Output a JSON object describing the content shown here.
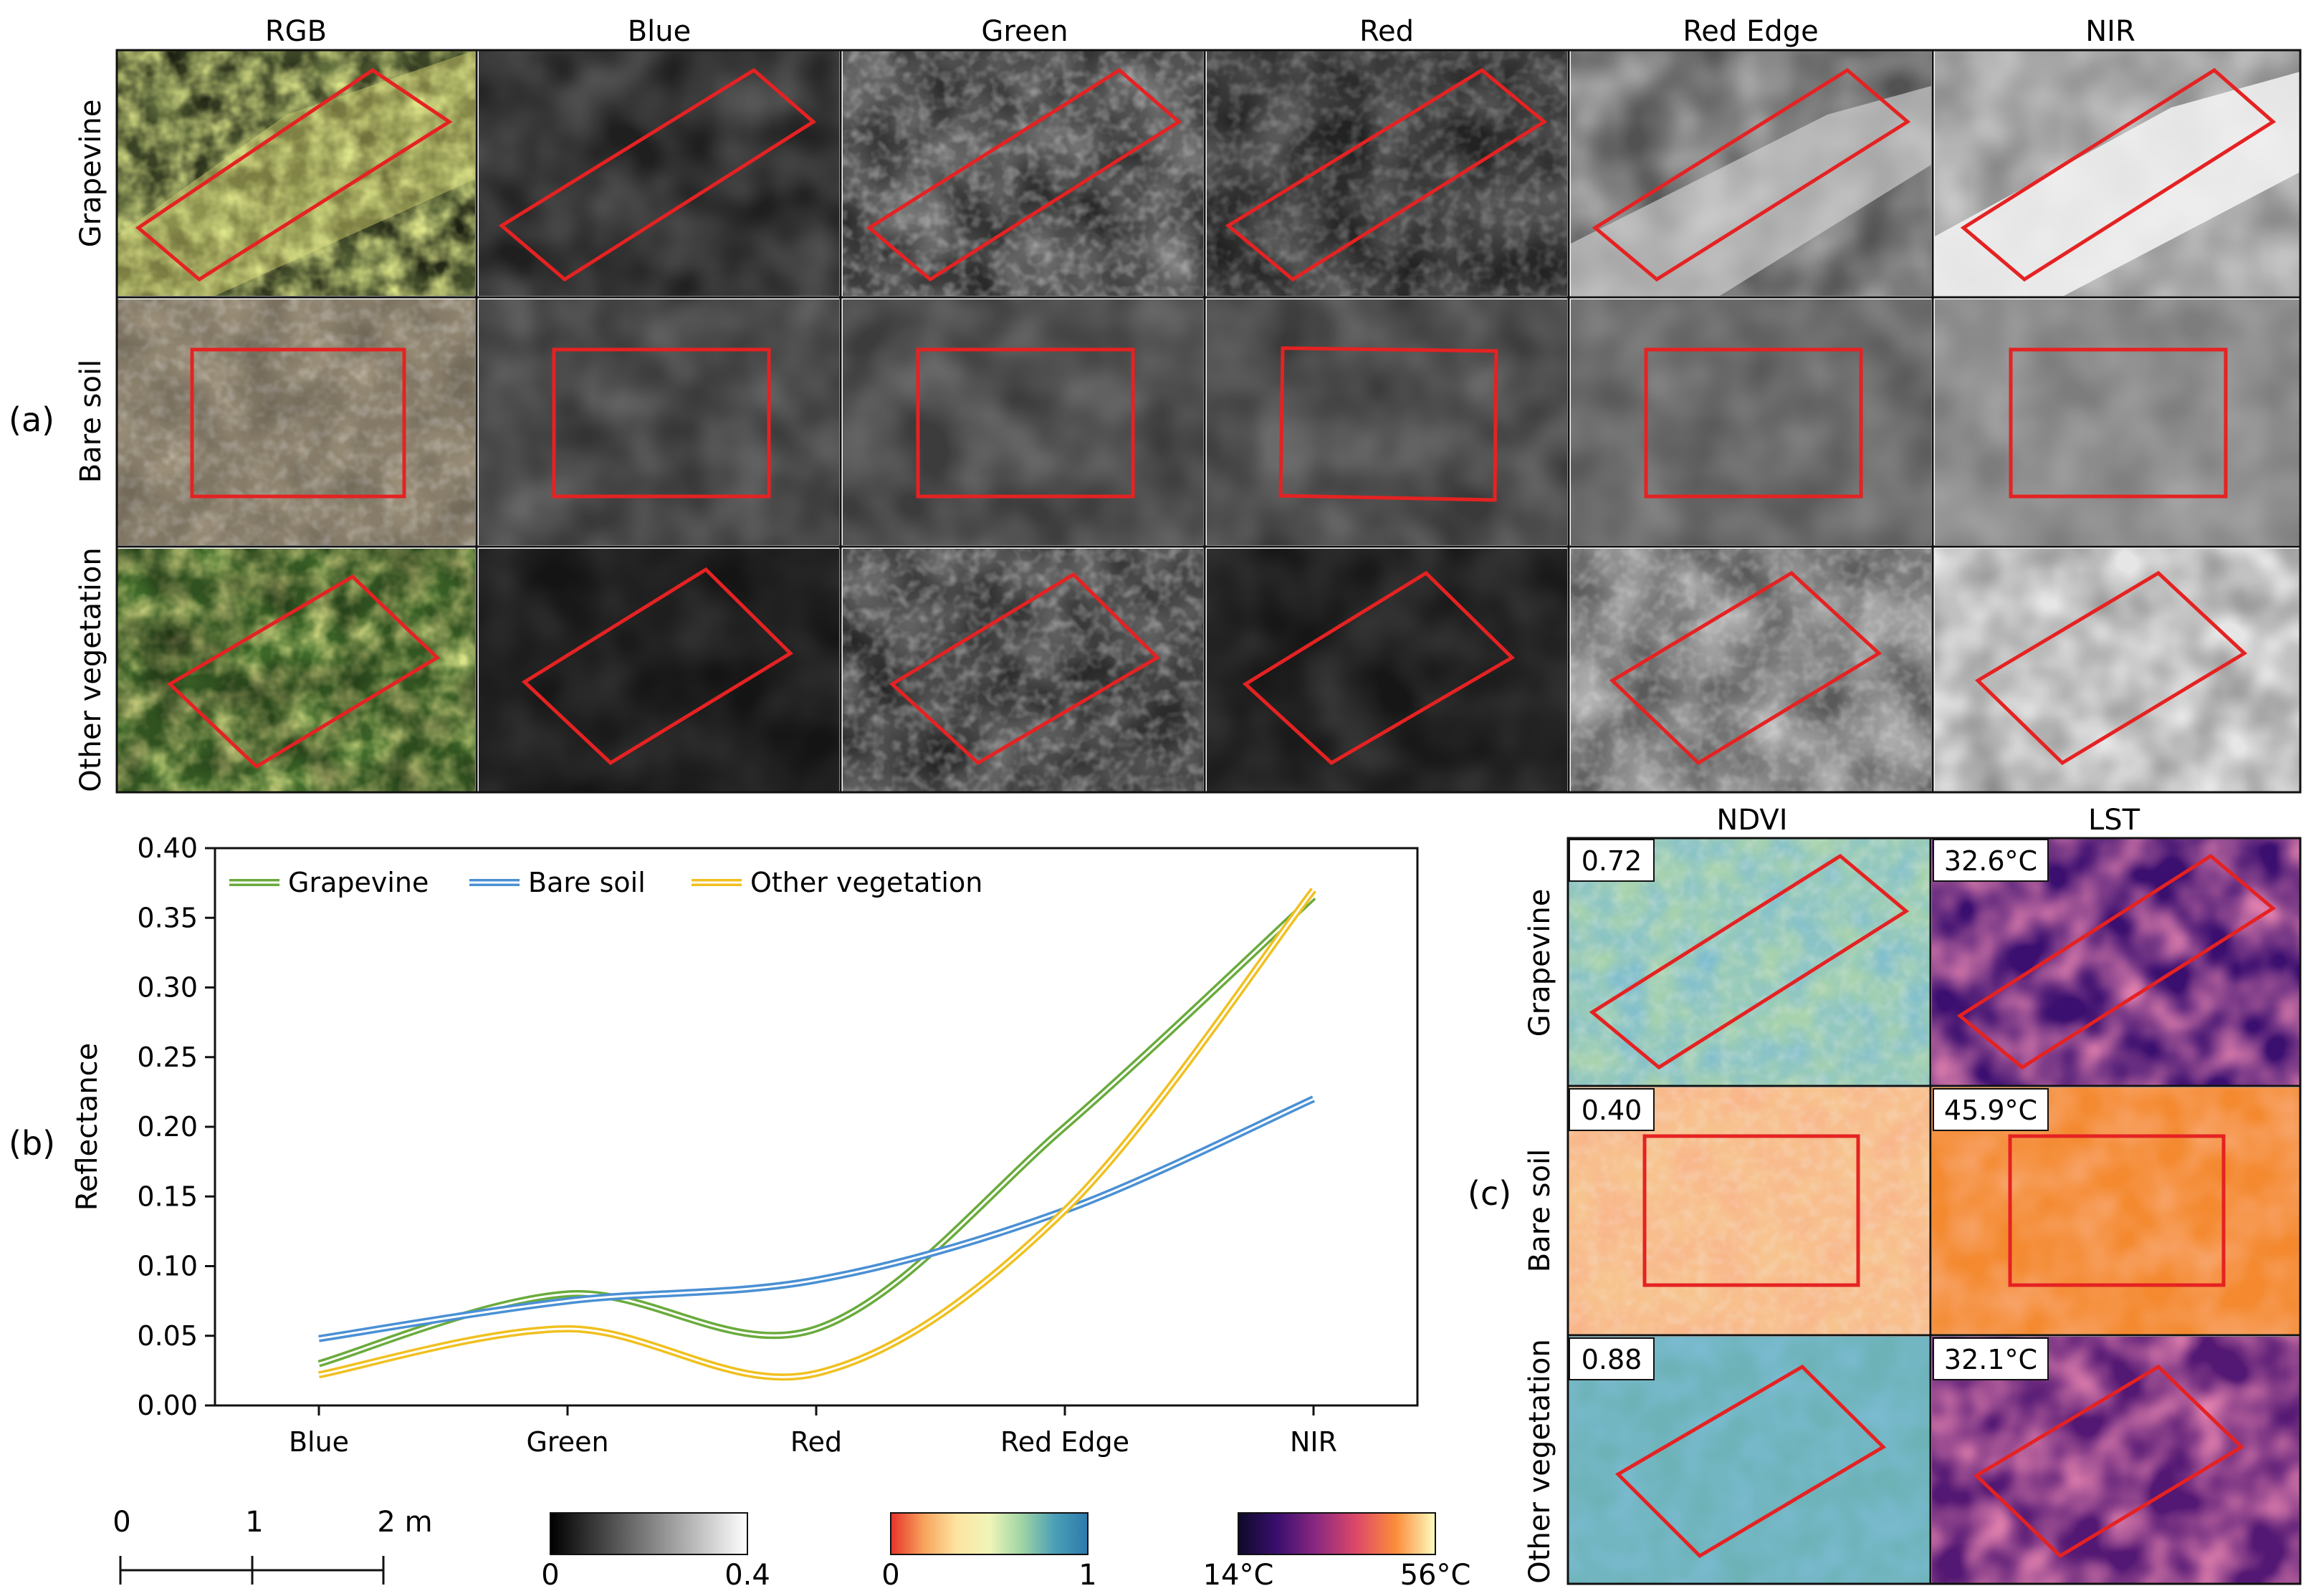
{
  "figure": {
    "panel_labels": {
      "a": "(a)",
      "b": "(b)",
      "c": "(c)"
    },
    "bands": [
      "RGB",
      "Blue",
      "Green",
      "Red",
      "Red Edge",
      "NIR"
    ],
    "classes": [
      "Grapevine",
      "Bare soil",
      "Other vegetation"
    ]
  },
  "indices": {
    "columns": [
      "NDVI",
      "LST"
    ],
    "values": [
      {
        "ndvi": "0.72",
        "lst": "32.6°C"
      },
      {
        "ndvi": "0.40",
        "lst": "45.9°C"
      },
      {
        "ndvi": "0.88",
        "lst": "32.1°C"
      }
    ]
  },
  "scale_bar": {
    "ticks": [
      "0",
      "1",
      "2 m"
    ]
  },
  "colorbars": [
    {
      "name": "reflectance",
      "min": "0",
      "max": "0.4",
      "colors": [
        "#000000",
        "#ffffff"
      ]
    },
    {
      "name": "ndvi",
      "min": "0",
      "max": "1",
      "colors": [
        "#e8322a",
        "#f7a35c",
        "#fde4a0",
        "#f0f5b8",
        "#9fd4a5",
        "#4a9fb6",
        "#2d7aac"
      ]
    },
    {
      "name": "lst",
      "min": "14°C",
      "max": "56°C",
      "colors": [
        "#0d0a29",
        "#3b0f6f",
        "#8c2981",
        "#dd4968",
        "#fc8d3c",
        "#fcfdbf"
      ]
    }
  ],
  "chart_data": {
    "type": "line",
    "categories": [
      "Blue",
      "Green",
      "Red",
      "Red Edge",
      "NIR"
    ],
    "ylabel": "Reflectance",
    "xlabel": "",
    "ylim": [
      0,
      0.4
    ],
    "yticks": [
      "0.00",
      "0.05",
      "0.10",
      "0.15",
      "0.20",
      "0.25",
      "0.30",
      "0.35",
      "0.40"
    ],
    "legend_position": "top-left",
    "series": [
      {
        "name": "Grapevine",
        "color": "#6aab3c",
        "values": [
          0.03,
          0.08,
          0.055,
          0.2,
          0.365
        ]
      },
      {
        "name": "Bare soil",
        "color": "#4a90d4",
        "values": [
          0.048,
          0.075,
          0.09,
          0.14,
          0.22
        ]
      },
      {
        "name": "Other vegetation",
        "color": "#f0c020",
        "values": [
          0.022,
          0.055,
          0.023,
          0.14,
          0.37
        ]
      }
    ]
  }
}
